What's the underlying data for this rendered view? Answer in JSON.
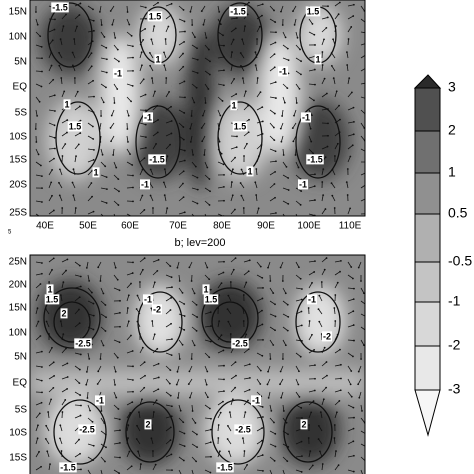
{
  "panels": [
    {
      "y_labels": [
        "15N",
        "10N",
        "5N",
        "EQ",
        "5S",
        "10S",
        "15S",
        "20S",
        "25S"
      ],
      "x_labels": [
        "40E",
        "50E",
        "60E",
        "70E",
        "80E",
        "90E",
        "100E",
        "110E"
      ],
      "contour_labels": [
        "-1.5",
        "1.5",
        "-1.5",
        "1.5",
        "-1",
        "1",
        "-1",
        "1",
        "1",
        "1.5",
        "-1",
        "-1.5",
        "1",
        "-1",
        "1",
        "1.5",
        "-1",
        "-1.5",
        "1",
        "-1"
      ]
    },
    {
      "title": "b; lev=200",
      "y_labels": [
        "25N",
        "20N",
        "15N",
        "10N",
        "5N",
        "EQ",
        "5S",
        "10S",
        "15S"
      ],
      "contour_labels": [
        "1",
        "1.5",
        "2",
        "-1",
        "-2",
        "-2.5",
        "1",
        "1.5",
        "-1",
        "-2",
        "-2.5",
        "-1",
        "-2.5",
        "2",
        "-1.5",
        "-1",
        "-2.5",
        "2",
        "-1.5"
      ]
    }
  ],
  "colorbar": {
    "labels": [
      "3",
      "2",
      "1",
      "0.5",
      "-0.5",
      "-1",
      "-2",
      "-3"
    ]
  },
  "corner_mark": "5"
}
